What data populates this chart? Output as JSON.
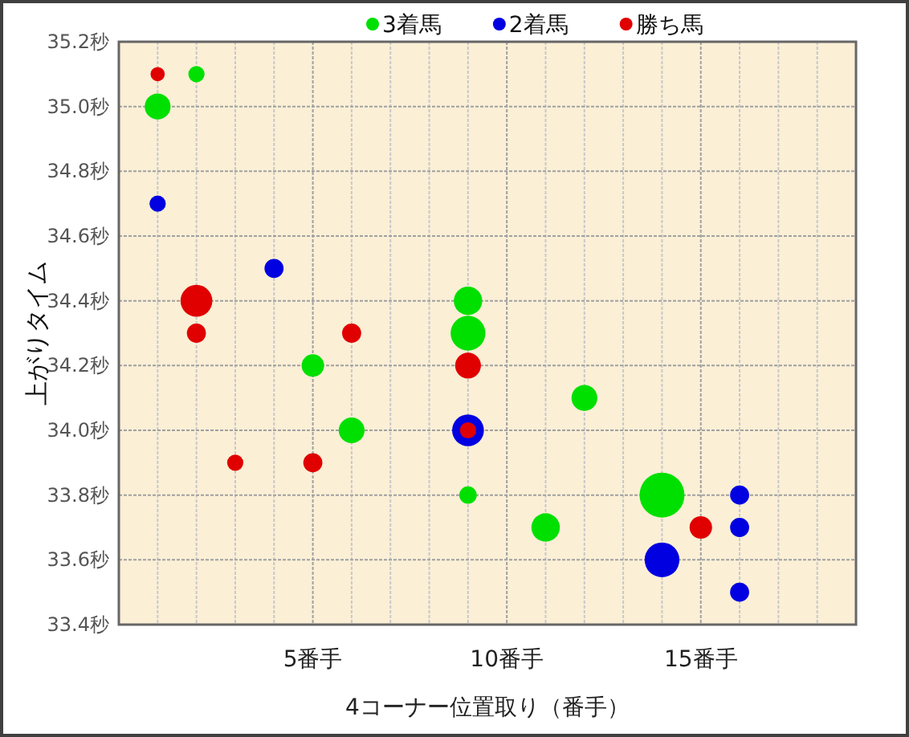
{
  "chart_data": {
    "type": "bubble",
    "xlabel": "4コーナー位置取り（番手）",
    "ylabel": "上がりタイム",
    "legend": "top",
    "grid": true,
    "xlim": [
      0,
      19
    ],
    "xticks": [
      {
        "value": 1,
        "label": null
      },
      {
        "value": 2,
        "label": null
      },
      {
        "value": 3,
        "label": null
      },
      {
        "value": 4,
        "label": null
      },
      {
        "value": 5,
        "label": "5番手"
      },
      {
        "value": 6,
        "label": null
      },
      {
        "value": 7,
        "label": null
      },
      {
        "value": 8,
        "label": null
      },
      {
        "value": 9,
        "label": null
      },
      {
        "value": 10,
        "label": "10番手"
      },
      {
        "value": 11,
        "label": null
      },
      {
        "value": 12,
        "label": null
      },
      {
        "value": 13,
        "label": null
      },
      {
        "value": 14,
        "label": null
      },
      {
        "value": 15,
        "label": "15番手"
      },
      {
        "value": 16,
        "label": null
      },
      {
        "value": 17,
        "label": null
      },
      {
        "value": 18,
        "label": null
      }
    ],
    "ylim": [
      33.4,
      35.2
    ],
    "yticks": [
      {
        "value": 33.4,
        "label": "33.4秒"
      },
      {
        "value": 33.6,
        "label": "33.6秒"
      },
      {
        "value": 33.8,
        "label": "33.8秒"
      },
      {
        "value": 34.0,
        "label": "34.0秒"
      },
      {
        "value": 34.2,
        "label": "34.2秒"
      },
      {
        "value": 34.4,
        "label": "34.4秒"
      },
      {
        "value": 34.6,
        "label": "34.6秒"
      },
      {
        "value": 34.8,
        "label": "34.8秒"
      },
      {
        "value": 35.0,
        "label": "35.0秒"
      },
      {
        "value": 35.2,
        "label": "35.2秒"
      }
    ],
    "series": [
      {
        "name": "3着馬",
        "color": "#00e000",
        "x": [
          2,
          1,
          9,
          9,
          5,
          6,
          9,
          11,
          12,
          14
        ],
        "values": [
          35.1,
          35.0,
          34.4,
          34.3,
          34.2,
          34.0,
          33.8,
          33.7,
          34.1,
          33.8
        ],
        "sizes": [
          0.13,
          0.33,
          0.4,
          0.6,
          0.25,
          0.33,
          0.15,
          0.4,
          0.33,
          1
        ]
      },
      {
        "name": "2着馬",
        "color": "#0000e0",
        "x": [
          1,
          4,
          9,
          14,
          16,
          16,
          16
        ],
        "values": [
          34.7,
          34.5,
          34.0,
          33.6,
          33.8,
          33.7,
          33.5
        ],
        "sizes": [
          0.13,
          0.18,
          0.5,
          0.6,
          0.18,
          0.18,
          0.18
        ]
      },
      {
        "name": "勝ち馬",
        "color": "#e00000",
        "x": [
          1,
          2,
          2,
          6,
          3,
          5,
          9,
          9,
          15
        ],
        "values": [
          35.1,
          34.4,
          34.3,
          34.3,
          33.9,
          33.9,
          34.2,
          34.0,
          33.7
        ],
        "sizes": [
          0.1,
          0.5,
          0.18,
          0.18,
          0.13,
          0.18,
          0.33,
          0.13,
          0.25
        ]
      }
    ]
  }
}
